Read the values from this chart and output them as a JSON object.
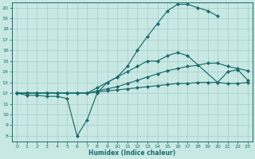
{
  "xlabel": "Humidex (Indice chaleur)",
  "bg_color": "#c8e8e4",
  "grid_color": "#a8ccc8",
  "line_color": "#1a6b6b",
  "xlim": [
    -0.5,
    23.5
  ],
  "ylim": [
    7.5,
    20.5
  ],
  "xticks": [
    0,
    1,
    2,
    3,
    4,
    5,
    6,
    7,
    8,
    9,
    10,
    11,
    12,
    13,
    14,
    15,
    16,
    17,
    18,
    19,
    20,
    21,
    22,
    23
  ],
  "yticks": [
    8,
    9,
    10,
    11,
    12,
    13,
    14,
    15,
    16,
    17,
    18,
    19,
    20
  ],
  "curves": [
    {
      "x": [
        0,
        1,
        2,
        3,
        4,
        5,
        6,
        7,
        8,
        9,
        10,
        11,
        12,
        13,
        14,
        15,
        16,
        17,
        18,
        19,
        20
      ],
      "y": [
        12,
        12,
        12,
        12,
        12,
        12,
        12,
        12,
        12.5,
        13,
        13.5,
        14.5,
        16,
        17.3,
        18.5,
        19.7,
        20.3,
        20.3,
        20.0,
        19.7,
        19.2
      ]
    },
    {
      "x": [
        0,
        1,
        2,
        3,
        4,
        5,
        6,
        7,
        8,
        9,
        10,
        11,
        12,
        13,
        14,
        15,
        16,
        17,
        20,
        21,
        22,
        23
      ],
      "y": [
        12,
        11.8,
        11.8,
        11.7,
        11.7,
        11.5,
        8.0,
        9.5,
        12.0,
        13.0,
        13.5,
        14.0,
        14.5,
        15.0,
        15.0,
        15.5,
        15.8,
        15.5,
        13.0,
        14.0,
        14.2,
        13.2
      ]
    },
    {
      "x": [
        0,
        1,
        2,
        3,
        4,
        5,
        6,
        7,
        8,
        9,
        10,
        11,
        12,
        13,
        14,
        15,
        16,
        17,
        18,
        19,
        20,
        21,
        22,
        23
      ],
      "y": [
        12,
        12,
        12,
        12,
        12,
        12,
        12,
        12,
        12.2,
        12.4,
        12.6,
        12.9,
        13.2,
        13.5,
        13.8,
        14.1,
        14.3,
        14.5,
        14.6,
        14.8,
        14.8,
        14.5,
        14.3,
        14.1
      ]
    },
    {
      "x": [
        0,
        1,
        2,
        3,
        4,
        5,
        6,
        7,
        8,
        9,
        10,
        11,
        12,
        13,
        14,
        15,
        16,
        17,
        18,
        19,
        20,
        21,
        22,
        23
      ],
      "y": [
        12,
        12,
        12,
        12,
        12,
        12,
        12,
        12,
        12.1,
        12.2,
        12.3,
        12.4,
        12.5,
        12.6,
        12.7,
        12.8,
        12.9,
        12.9,
        13.0,
        13.0,
        13.0,
        12.9,
        12.9,
        13.0
      ]
    }
  ]
}
